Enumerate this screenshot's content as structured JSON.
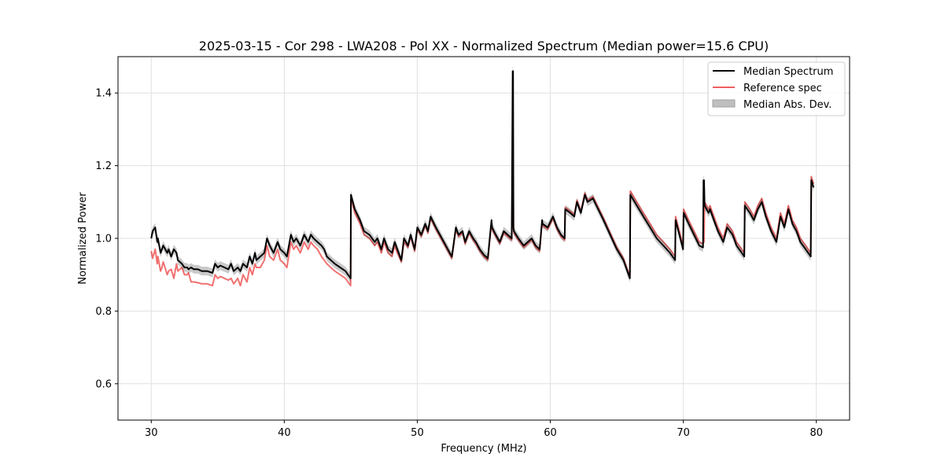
{
  "chart_data": {
    "type": "line",
    "title": "2025-03-15 - Cor 298 - LWA208 - Pol XX - Normalized Spectrum (Median power=15.6 CPU)",
    "xlabel": "Frequency (MHz)",
    "ylabel": "Normalized Power",
    "xlim": [
      27.5,
      82.5
    ],
    "ylim": [
      0.5,
      1.5
    ],
    "xticks": [
      30,
      40,
      50,
      60,
      70,
      80
    ],
    "yticks": [
      0.6,
      0.8,
      1.0,
      1.2,
      1.4
    ],
    "xtick_labels": [
      "30",
      "40",
      "50",
      "60",
      "70",
      "80"
    ],
    "ytick_labels": [
      "0.6",
      "0.8",
      "1.0",
      "1.2",
      "1.4"
    ],
    "grid": true,
    "legend_position": "top-right",
    "colors": {
      "median": "#000000",
      "reference": "#f06060",
      "mad": "#bfbfbf",
      "overlap": "#800000"
    },
    "series": [
      {
        "name": "Median Spectrum",
        "color": "#000000",
        "x": [
          30.0,
          30.1,
          30.3,
          30.45,
          30.5,
          30.7,
          30.8,
          30.9,
          31.2,
          31.3,
          31.5,
          31.7,
          31.9,
          32.0,
          32.3,
          32.5,
          32.7,
          32.8,
          33.0,
          33.2,
          33.5,
          33.8,
          34.2,
          34.6,
          34.8,
          35.0,
          35.2,
          35.5,
          35.8,
          36.0,
          36.2,
          36.5,
          36.7,
          36.9,
          37.2,
          37.4,
          37.6,
          37.8,
          37.9,
          38.2,
          38.5,
          38.7,
          38.9,
          39.2,
          39.5,
          39.7,
          40.0,
          40.2,
          40.5,
          40.7,
          40.9,
          41.2,
          41.5,
          41.8,
          42.0,
          42.2,
          42.5,
          42.8,
          43.0,
          43.2,
          43.5,
          43.8,
          44.2,
          44.6,
          44.99,
          45.01,
          45.3,
          45.7,
          46.0,
          46.4,
          46.8,
          47.0,
          47.3,
          47.5,
          47.8,
          48.1,
          48.3,
          48.5,
          48.8,
          49.0,
          49.3,
          49.5,
          49.8,
          50.0,
          50.3,
          50.6,
          50.8,
          51.0,
          51.4,
          51.7,
          52.0,
          52.3,
          52.6,
          52.9,
          53.1,
          53.4,
          53.6,
          53.9,
          54.2,
          54.4,
          54.7,
          55.0,
          55.3,
          55.58,
          55.62,
          55.9,
          56.2,
          56.5,
          56.8,
          57.1,
          57.17,
          57.2,
          57.23,
          57.26,
          57.6,
          58.0,
          58.3,
          58.6,
          58.9,
          59.2,
          59.38,
          59.42,
          59.8,
          60.2,
          60.5,
          60.8,
          61.08,
          61.12,
          61.5,
          61.8,
          62.0,
          62.3,
          62.6,
          62.8,
          63.2,
          63.6,
          64.0,
          64.5,
          65.0,
          65.5,
          65.98,
          66.02,
          66.5,
          67.0,
          67.5,
          68.0,
          68.5,
          69.0,
          69.38,
          69.42,
          69.7,
          69.98,
          70.02,
          70.4,
          70.8,
          71.2,
          71.48,
          71.52,
          71.56,
          71.6,
          71.9,
          72.0,
          72.3,
          72.6,
          73.0,
          73.3,
          73.7,
          74.0,
          74.4,
          74.58,
          74.62,
          75.0,
          75.3,
          75.6,
          75.9,
          76.2,
          76.6,
          77.0,
          77.3,
          77.6,
          77.9,
          78.2,
          78.5,
          78.8,
          79.2,
          79.58,
          79.62,
          79.8
        ],
        "values": [
          1.0,
          1.02,
          1.03,
          0.99,
          1.0,
          0.96,
          0.97,
          0.98,
          0.96,
          0.97,
          0.95,
          0.97,
          0.96,
          0.94,
          0.93,
          0.92,
          0.92,
          0.915,
          0.92,
          0.915,
          0.915,
          0.91,
          0.91,
          0.905,
          0.93,
          0.92,
          0.925,
          0.92,
          0.915,
          0.93,
          0.91,
          0.92,
          0.91,
          0.93,
          0.92,
          0.95,
          0.93,
          0.96,
          0.94,
          0.95,
          0.96,
          1.0,
          0.98,
          0.96,
          0.99,
          0.97,
          0.96,
          0.95,
          1.01,
          0.99,
          1.0,
          0.98,
          1.01,
          0.99,
          1.01,
          1.0,
          0.99,
          0.98,
          0.97,
          0.95,
          0.94,
          0.93,
          0.92,
          0.91,
          0.89,
          1.12,
          1.08,
          1.05,
          1.02,
          1.01,
          0.99,
          1.0,
          0.97,
          1.0,
          0.97,
          0.96,
          0.99,
          0.97,
          0.94,
          1.0,
          0.98,
          1.01,
          0.97,
          1.03,
          1.01,
          1.04,
          1.02,
          1.06,
          1.03,
          1.01,
          0.99,
          0.97,
          0.95,
          1.03,
          1.01,
          1.02,
          0.99,
          1.02,
          1.0,
          0.99,
          0.97,
          0.955,
          0.945,
          1.05,
          1.03,
          1.01,
          0.99,
          1.02,
          1.01,
          1.0,
          1.46,
          1.46,
          1.03,
          1.02,
          1.0,
          0.98,
          0.99,
          1.0,
          0.98,
          0.97,
          1.05,
          1.04,
          1.03,
          1.06,
          1.03,
          1.01,
          1.0,
          1.08,
          1.07,
          1.06,
          1.1,
          1.07,
          1.12,
          1.1,
          1.11,
          1.08,
          1.05,
          1.01,
          0.97,
          0.94,
          0.89,
          1.12,
          1.09,
          1.06,
          1.03,
          1.0,
          0.98,
          0.96,
          0.94,
          1.05,
          1.01,
          0.97,
          1.07,
          1.04,
          1.01,
          0.98,
          0.975,
          1.16,
          1.16,
          1.09,
          1.07,
          1.08,
          1.05,
          1.02,
          0.99,
          1.03,
          1.01,
          0.98,
          0.96,
          0.95,
          1.09,
          1.07,
          1.05,
          1.08,
          1.1,
          1.06,
          1.02,
          0.99,
          1.06,
          1.03,
          1.08,
          1.04,
          1.02,
          0.99,
          0.97,
          0.95,
          1.16,
          1.14
        ]
      },
      {
        "name": "Reference spec",
        "color": "#f06060",
        "x": [
          30.0,
          30.1,
          30.3,
          30.45,
          30.5,
          30.7,
          30.8,
          30.9,
          31.2,
          31.3,
          31.5,
          31.7,
          31.9,
          32.0,
          32.3,
          32.5,
          32.7,
          32.8,
          33.0,
          33.2,
          33.5,
          33.8,
          34.2,
          34.6,
          34.8,
          35.0,
          35.2,
          35.5,
          35.8,
          36.0,
          36.2,
          36.5,
          36.7,
          36.9,
          37.2,
          37.4,
          37.6,
          37.8,
          37.9,
          38.2,
          38.5,
          38.7,
          38.9,
          39.2,
          39.5,
          39.7,
          40.0,
          40.2,
          40.5,
          40.7,
          40.9,
          41.2,
          41.5,
          41.8,
          42.0,
          42.2,
          42.5,
          42.8,
          43.0,
          43.2,
          43.5,
          43.8,
          44.2,
          44.6,
          44.99,
          45.01,
          45.3,
          45.7,
          46.0,
          46.4,
          46.8,
          47.0,
          47.3,
          47.5,
          47.8,
          48.1,
          48.3,
          48.5,
          48.8,
          49.0,
          49.3,
          49.5,
          49.8,
          50.0,
          50.3,
          50.6,
          50.8,
          51.0,
          51.4,
          51.7,
          52.0,
          52.3,
          52.6,
          52.9,
          53.1,
          53.4,
          53.6,
          53.9,
          54.2,
          54.4,
          54.7,
          55.0,
          55.3,
          55.58,
          55.62,
          55.9,
          56.2,
          56.5,
          56.8,
          57.1,
          57.17,
          57.2,
          57.23,
          57.26,
          57.6,
          58.0,
          58.3,
          58.6,
          58.9,
          59.2,
          59.38,
          59.42,
          59.8,
          60.2,
          60.5,
          60.8,
          61.08,
          61.12,
          61.5,
          61.8,
          62.0,
          62.3,
          62.6,
          62.8,
          63.2,
          63.6,
          64.0,
          64.5,
          65.0,
          65.5,
          65.98,
          66.02,
          66.5,
          67.0,
          67.5,
          68.0,
          68.5,
          69.0,
          69.38,
          69.42,
          69.7,
          69.98,
          70.02,
          70.4,
          70.8,
          71.2,
          71.48,
          71.52,
          71.56,
          71.6,
          71.9,
          72.0,
          72.3,
          72.6,
          73.0,
          73.3,
          73.7,
          74.0,
          74.4,
          74.58,
          74.62,
          75.0,
          75.3,
          75.6,
          75.9,
          76.2,
          76.6,
          77.0,
          77.3,
          77.6,
          77.9,
          78.2,
          78.5,
          78.8,
          79.2,
          79.58,
          79.62,
          79.8
        ],
        "values": [
          0.965,
          0.945,
          0.97,
          0.93,
          0.95,
          0.91,
          0.92,
          0.935,
          0.9,
          0.91,
          0.915,
          0.89,
          0.93,
          0.91,
          0.92,
          0.9,
          0.9,
          0.905,
          0.88,
          0.88,
          0.878,
          0.875,
          0.875,
          0.87,
          0.9,
          0.89,
          0.895,
          0.89,
          0.885,
          0.89,
          0.875,
          0.89,
          0.87,
          0.9,
          0.88,
          0.92,
          0.9,
          0.93,
          0.92,
          0.92,
          0.94,
          0.98,
          0.95,
          0.94,
          0.97,
          0.94,
          0.93,
          0.92,
          0.99,
          0.97,
          0.98,
          0.96,
          0.99,
          0.97,
          0.99,
          0.98,
          0.97,
          0.95,
          0.94,
          0.93,
          0.92,
          0.91,
          0.9,
          0.89,
          0.87,
          1.11,
          1.07,
          1.04,
          1.01,
          1.0,
          0.98,
          0.99,
          0.96,
          0.99,
          0.96,
          0.95,
          0.98,
          0.96,
          0.935,
          0.99,
          0.975,
          1.005,
          0.965,
          1.025,
          1.005,
          1.035,
          1.015,
          1.055,
          1.025,
          1.005,
          0.985,
          0.965,
          0.945,
          1.025,
          1.005,
          1.015,
          0.985,
          1.015,
          0.995,
          0.985,
          0.965,
          0.95,
          0.94,
          1.045,
          1.025,
          1.005,
          0.985,
          1.015,
          1.005,
          0.995,
          1.27,
          1.27,
          1.025,
          1.015,
          0.995,
          0.975,
          0.985,
          0.995,
          0.975,
          0.965,
          1.045,
          1.035,
          1.025,
          1.055,
          1.025,
          1.005,
          0.995,
          1.085,
          1.075,
          1.065,
          1.105,
          1.075,
          1.125,
          1.105,
          1.115,
          1.085,
          1.055,
          1.015,
          0.975,
          0.945,
          0.895,
          1.13,
          1.1,
          1.07,
          1.04,
          1.01,
          0.99,
          0.97,
          0.95,
          1.06,
          1.02,
          0.98,
          1.08,
          1.05,
          1.02,
          0.99,
          0.985,
          0.99,
          0.99,
          1.1,
          1.08,
          1.09,
          1.06,
          1.03,
          1.0,
          1.04,
          1.02,
          0.99,
          0.97,
          0.96,
          1.1,
          1.08,
          1.06,
          1.09,
          1.11,
          1.07,
          1.03,
          1.0,
          1.07,
          1.04,
          1.09,
          1.05,
          1.03,
          1.0,
          0.98,
          0.96,
          1.17,
          1.15
        ]
      },
      {
        "name": "Median Abs. Dev.",
        "color": "#bfbfbf",
        "band": 0.012
      }
    ]
  }
}
